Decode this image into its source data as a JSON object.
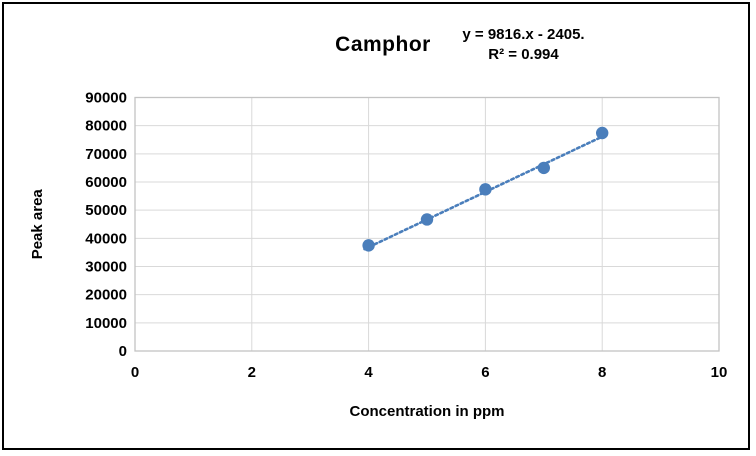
{
  "chart_data": {
    "type": "scatter",
    "title": "Camphor",
    "annotation": [
      "y = 9816.x - 2405.",
      "R² = 0.994"
    ],
    "xlabel": "Concentration in ppm",
    "ylabel": "Peak area",
    "xlim": [
      0,
      10
    ],
    "xticks": [
      0,
      2,
      4,
      6,
      8,
      10
    ],
    "ylim": [
      0,
      90000
    ],
    "yticks": [
      0,
      10000,
      20000,
      30000,
      40000,
      50000,
      60000,
      70000,
      80000,
      90000
    ],
    "grid": true,
    "legend": false,
    "series": [
      {
        "name": "Camphor",
        "x": [
          4,
          5,
          6,
          7,
          8
        ],
        "y": [
          37500,
          46700,
          57400,
          65000,
          77400
        ],
        "marker": "circle",
        "color": "#4a7ebb"
      }
    ],
    "trendline": {
      "type": "linear",
      "slope": 9816,
      "intercept": -2405,
      "r2": 0.994,
      "x_range": [
        3.93,
        8.07
      ],
      "style": "dotted",
      "color": "#4a7ebb"
    }
  },
  "colors": {
    "marker": "#4a7ebb",
    "gridline": "#d9d9d9",
    "plot_frame": "#c3c3c3",
    "text": "#000000",
    "background": "#ffffff",
    "outer_border": "#000000"
  }
}
